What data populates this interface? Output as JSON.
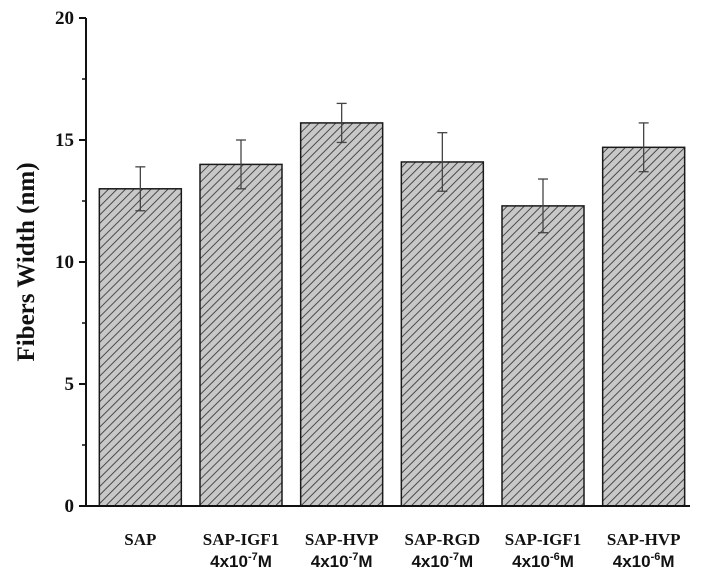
{
  "chart_data": {
    "type": "bar",
    "title": "",
    "xlabel": "",
    "ylabel": "Fibers Width (nm)",
    "ylim": [
      0,
      20
    ],
    "yticks": [
      "0",
      "5",
      "10",
      "15",
      "20"
    ],
    "categories": [
      {
        "line1": "SAP",
        "base": "",
        "exp": "",
        "suffix": ""
      },
      {
        "line1": "SAP-IGF1",
        "base": "4x10",
        "exp": "-7",
        "suffix": "M"
      },
      {
        "line1": "SAP-HVP",
        "base": "4x10",
        "exp": "-7",
        "suffix": "M"
      },
      {
        "line1": "SAP-RGD",
        "base": "4x10",
        "exp": "-7",
        "suffix": "M"
      },
      {
        "line1": "SAP-IGF1",
        "base": "4x10",
        "exp": "-6",
        "suffix": "M"
      },
      {
        "line1": "SAP-HVP",
        "base": "4x10",
        "exp": "-6",
        "suffix": "M"
      }
    ],
    "values": [
      13.0,
      14.0,
      15.7,
      14.1,
      12.3,
      14.7
    ],
    "errors": [
      0.9,
      1.0,
      0.8,
      1.2,
      1.1,
      1.0
    ],
    "bar_fill": "#c8c8c8",
    "hatch_color": "#4a4a4a",
    "grid": false,
    "legend": "none"
  }
}
